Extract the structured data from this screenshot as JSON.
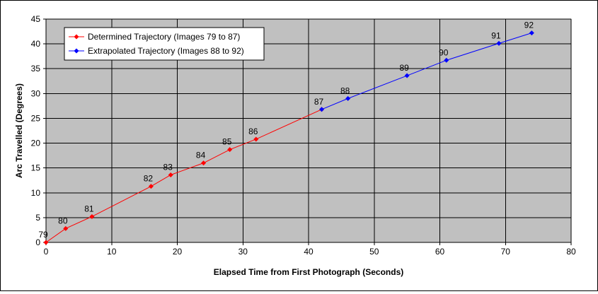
{
  "chart_data": {
    "type": "line",
    "title": "",
    "xlabel": "Elapsed Time from First Photograph (Seconds)",
    "ylabel": "Arc Travelled (Degrees)",
    "xlim": [
      0,
      80
    ],
    "ylim": [
      0,
      45
    ],
    "x_ticks": [
      0,
      10,
      20,
      30,
      40,
      50,
      60,
      70,
      80
    ],
    "y_ticks": [
      0,
      5,
      10,
      15,
      20,
      25,
      30,
      35,
      40,
      45
    ],
    "grid": true,
    "legend_position": "top-left",
    "plot_background": "#c0c0c0",
    "series": [
      {
        "name": "Determined Trajectory (Images 79 to 87)",
        "color": "#ff0000",
        "points": [
          {
            "x": 0,
            "y": 0,
            "label": "79"
          },
          {
            "x": 3,
            "y": 2.8,
            "label": "80"
          },
          {
            "x": 7,
            "y": 5.2,
            "label": "81"
          },
          {
            "x": 16,
            "y": 11.3,
            "label": "82"
          },
          {
            "x": 19,
            "y": 13.6,
            "label": "83"
          },
          {
            "x": 24,
            "y": 16,
            "label": "84"
          },
          {
            "x": 28,
            "y": 18.7,
            "label": "85"
          },
          {
            "x": 32,
            "y": 20.8,
            "label": "86"
          },
          {
            "x": 42,
            "y": 26.8,
            "label": "87"
          }
        ]
      },
      {
        "name": "Extrapolated Trajectory (Images 88 to 92)",
        "color": "#0000ff",
        "points": [
          {
            "x": 42,
            "y": 26.8,
            "label": ""
          },
          {
            "x": 46,
            "y": 29,
            "label": "88"
          },
          {
            "x": 55,
            "y": 33.6,
            "label": "89"
          },
          {
            "x": 61,
            "y": 36.7,
            "label": "90"
          },
          {
            "x": 69,
            "y": 40.1,
            "label": "91"
          },
          {
            "x": 74,
            "y": 42.2,
            "label": "92"
          }
        ]
      }
    ]
  }
}
